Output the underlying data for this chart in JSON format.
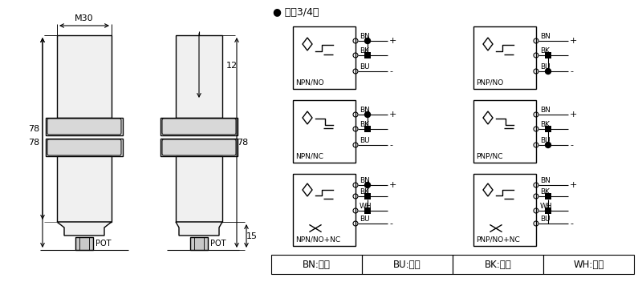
{
  "bg_color": "#ffffff",
  "line_color": "#000000",
  "title_bullet": "● 直流3/4线",
  "dim_M30": "M30",
  "dim_78_left": "78",
  "dim_78_right": "78",
  "dim_12": "12",
  "dim_15": "15",
  "pot_label": "POT",
  "color_table": [
    {
      "code": "BN",
      "name": "棕色"
    },
    {
      "code": "BU",
      "name": "兰色"
    },
    {
      "code": "BK",
      "name": "黑色"
    },
    {
      "code": "WH",
      "name": "白色"
    }
  ]
}
